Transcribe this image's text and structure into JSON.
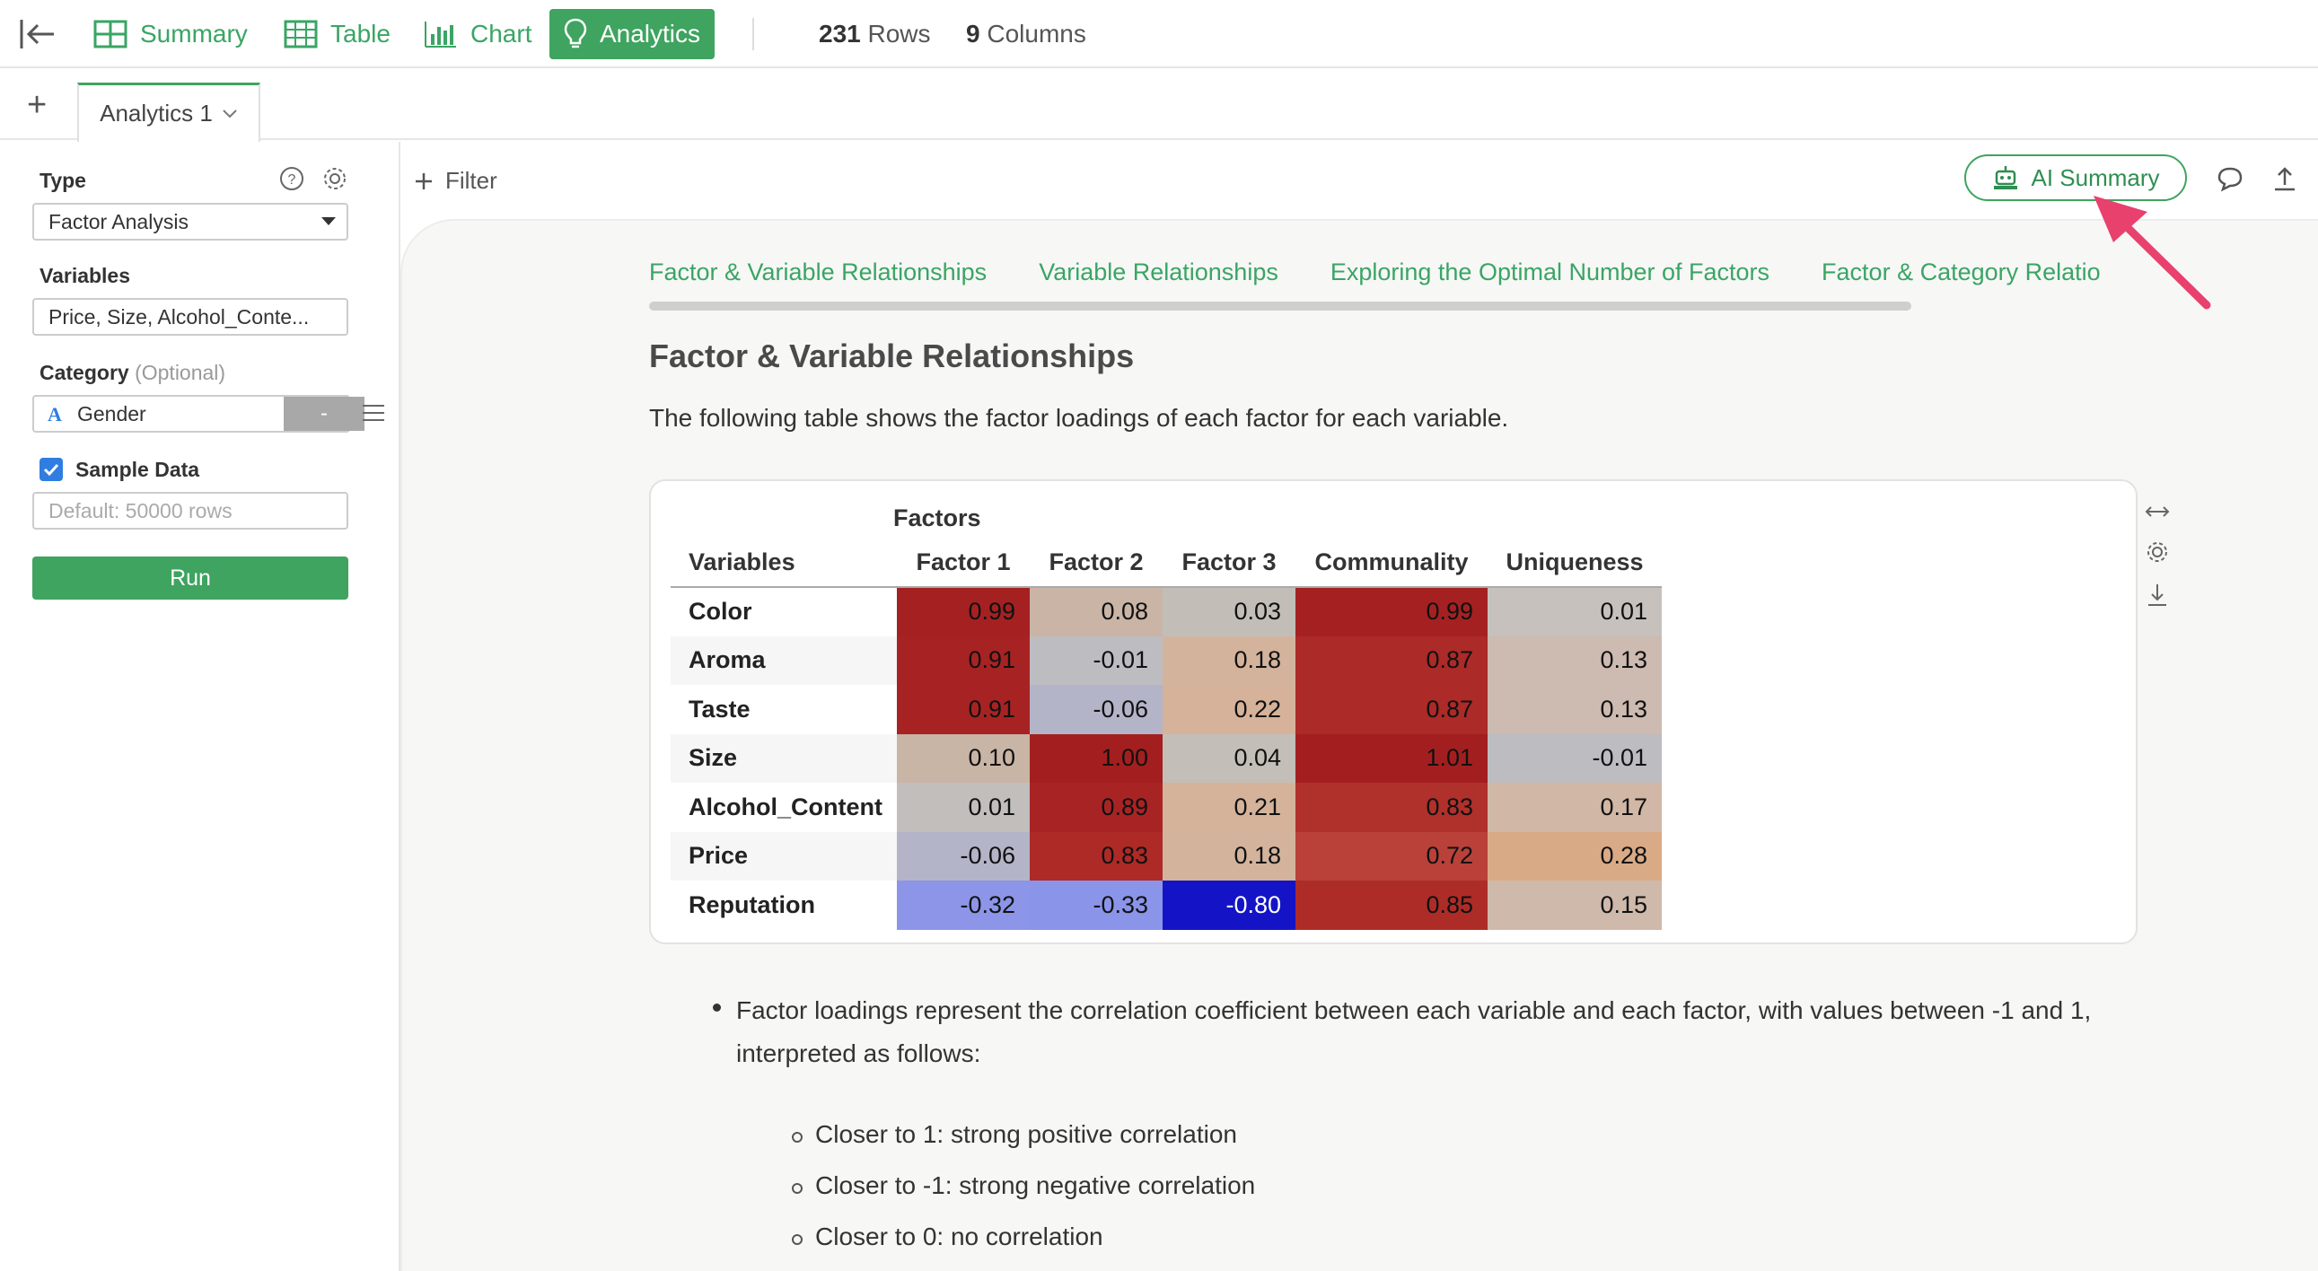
{
  "toolbar": {
    "nav": [
      {
        "label": "Summary",
        "icon": "summary-grid-icon"
      },
      {
        "label": "Table",
        "icon": "table-icon"
      },
      {
        "label": "Chart",
        "icon": "bar-chart-icon"
      },
      {
        "label": "Analytics",
        "icon": "lightbulb-icon",
        "active": true
      }
    ],
    "rows_count": "231",
    "rows_label": "Rows",
    "cols_count": "9",
    "cols_label": "Columns"
  },
  "tabs": {
    "active_label": "Analytics 1"
  },
  "left_panel": {
    "type_label": "Type",
    "type_value": "Factor Analysis",
    "variables_label": "Variables",
    "variables_value": "Price, Size, Alcohol_Conte...",
    "category_label": "Category",
    "category_optional": "(Optional)",
    "category_value": "Gender",
    "category_dash": "-",
    "sample_label": "Sample Data",
    "sample_placeholder": "Default: 50000 rows",
    "run_label": "Run"
  },
  "main": {
    "filter_label": "Filter",
    "ai_summary_label": "AI Summary",
    "subtabs": [
      "Factor & Variable Relationships",
      "Variable Relationships",
      "Exploring the Optimal Number of Factors",
      "Factor & Category Relatio"
    ],
    "heading": "Factor & Variable Relationships",
    "description": "The following table shows the factor loadings of each factor for each variable.",
    "table": {
      "group_header": "Factors",
      "columns": [
        "Variables",
        "Factor 1",
        "Factor 2",
        "Factor 3",
        "Communality",
        "Uniqueness"
      ],
      "rows": [
        {
          "name": "Color",
          "values": [
            "0.99",
            "0.08",
            "0.03",
            "0.99",
            "0.01"
          ],
          "colors": [
            "#a52121",
            "#c9b4a6",
            "#c3bdb8",
            "#a52121",
            "#c6c1bd"
          ]
        },
        {
          "name": "Aroma",
          "values": [
            "0.91",
            "-0.01",
            "0.18",
            "0.87",
            "0.13"
          ],
          "colors": [
            "#a72323",
            "#bdbcc1",
            "#d3b39c",
            "#ac2a27",
            "#cdbab0"
          ]
        },
        {
          "name": "Taste",
          "values": [
            "0.91",
            "-0.06",
            "0.22",
            "0.87",
            "0.13"
          ],
          "colors": [
            "#a72323",
            "#b3b4c8",
            "#d5b299",
            "#ac2a27",
            "#cdbab0"
          ]
        },
        {
          "name": "Size",
          "values": [
            "0.10",
            "1.00",
            "0.04",
            "1.01",
            "-0.01"
          ],
          "colors": [
            "#c9b5a6",
            "#a31f1f",
            "#c4beb8",
            "#a31f1f",
            "#bdbcc1"
          ]
        },
        {
          "name": "Alcohol_Content",
          "values": [
            "0.01",
            "0.89",
            "0.21",
            "0.83",
            "0.17"
          ],
          "colors": [
            "#c1bebc",
            "#a82424",
            "#d4b39a",
            "#b0302b",
            "#d1b7a5"
          ]
        },
        {
          "name": "Price",
          "values": [
            "-0.06",
            "0.83",
            "0.18",
            "0.72",
            "0.28"
          ],
          "colors": [
            "#b3b4c8",
            "#ad2a27",
            "#d3b39c",
            "#b9413a",
            "#d9aa86"
          ]
        },
        {
          "name": "Reputation",
          "values": [
            "-0.32",
            "-0.33",
            "-0.80",
            "0.85",
            "0.15"
          ],
          "colors": [
            "#8c95e8",
            "#8a94e9",
            "#1414c6",
            "#ae2c28",
            "#cfb9ab"
          ]
        }
      ]
    },
    "bullet_main": "Factor loadings represent the correlation coefficient between each variable and each factor, with values between -1 and 1, interpreted as follows:",
    "sub_bullets": [
      "Closer to 1: strong positive correlation",
      "Closer to -1: strong negative correlation",
      "Closer to 0: no correlation"
    ]
  },
  "accent_color": "#3ea45f",
  "annotation_arrow_color": "#e8416e"
}
